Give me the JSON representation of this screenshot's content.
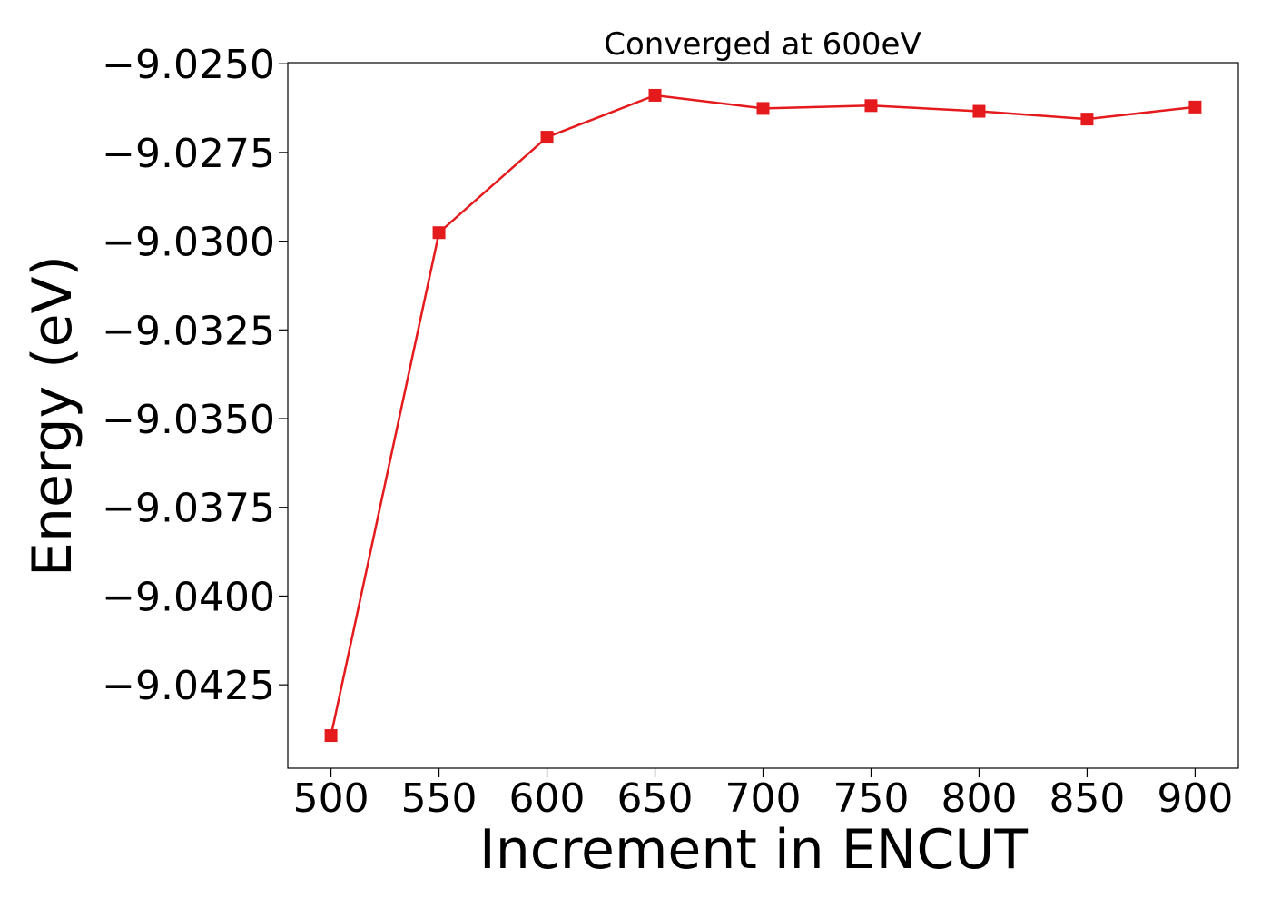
{
  "chart_data": {
    "type": "line",
    "title": "Converged at 600eV",
    "xlabel": "Increment in ENCUT",
    "ylabel": "Energy (eV)",
    "x": [
      500,
      550,
      600,
      650,
      700,
      750,
      800,
      850,
      900
    ],
    "series": [
      {
        "values": [
          -9.04393,
          -9.02976,
          -9.02707,
          -9.02589,
          -9.02626,
          -9.02618,
          -9.02634,
          -9.02656,
          -9.02622
        ],
        "color": "#e41a1c",
        "marker": "square"
      }
    ],
    "xticks": [
      500,
      550,
      600,
      650,
      700,
      750,
      800,
      850,
      900
    ],
    "xtick_labels": [
      "500",
      "550",
      "600",
      "650",
      "700",
      "750",
      "800",
      "850",
      "900"
    ],
    "yticks": [
      -9.0425,
      -9.04,
      -9.0375,
      -9.035,
      -9.0325,
      -9.03,
      -9.0275,
      -9.025
    ],
    "ytick_labels": [
      "−9.0425",
      "−9.0400",
      "−9.0375",
      "−9.0350",
      "−9.0325",
      "−9.0300",
      "−9.0275",
      "−9.0250"
    ],
    "xlim": [
      480,
      920
    ],
    "ylim": [
      -9.04485,
      -9.02497
    ],
    "grid": false,
    "legend": "none"
  }
}
